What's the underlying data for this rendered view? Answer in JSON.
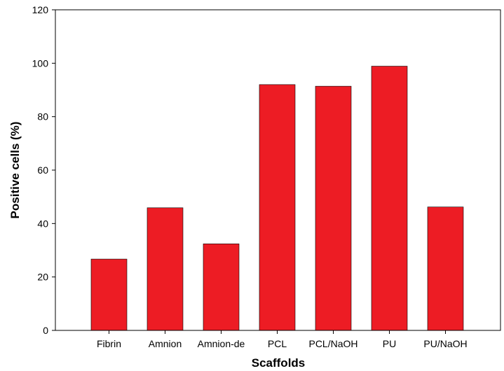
{
  "chart_data": {
    "type": "bar",
    "title": "",
    "xlabel": "Scaffolds",
    "ylabel": "Positive cells (%)",
    "ylim": [
      0,
      120
    ],
    "yticks": [
      0,
      20,
      40,
      60,
      80,
      100,
      120
    ],
    "grid": false,
    "legend": "none",
    "categories": [
      "Fibrin",
      "Amnion",
      "Amnion-de",
      "PCL",
      "PCL/NaOH",
      "PU",
      "PU/NaOH"
    ],
    "values": [
      26.7,
      45.9,
      32.4,
      92.0,
      91.4,
      98.9,
      46.2
    ],
    "bar_color": "#ed1c24",
    "axis_color": "#000000"
  }
}
